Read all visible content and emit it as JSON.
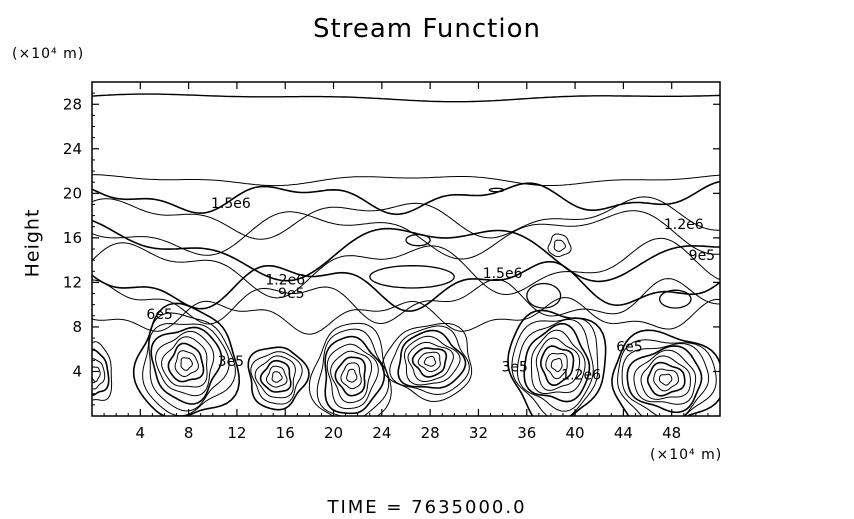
{
  "chart_data": {
    "type": "contour",
    "title": "Stream Function",
    "ylabel": "Height",
    "y_unit": "(×10⁴ m)",
    "x_unit": "(×10⁴ m)",
    "footer": "TIME  =  7635000.0",
    "xlim": [
      0,
      52
    ],
    "ylim": [
      0,
      30
    ],
    "x_ticks": [
      4,
      8,
      12,
      16,
      20,
      24,
      28,
      32,
      36,
      40,
      44,
      48
    ],
    "y_ticks": [
      4,
      8,
      12,
      16,
      20,
      24,
      28
    ],
    "grid": false,
    "contour_labels": [
      {
        "text": "1.5e6",
        "x": 11.5,
        "y": 18.7
      },
      {
        "text": "1.2e6",
        "x": 16.0,
        "y": 11.8
      },
      {
        "text": "9e5",
        "x": 16.5,
        "y": 10.6
      },
      {
        "text": "6e5",
        "x": 5.6,
        "y": 8.7
      },
      {
        "text": "1.5e6",
        "x": 34.0,
        "y": 12.4
      },
      {
        "text": "1.2e6",
        "x": 49.0,
        "y": 16.8
      },
      {
        "text": "9e5",
        "x": 50.5,
        "y": 14.0
      },
      {
        "text": "3e5",
        "x": 11.5,
        "y": 4.5
      },
      {
        "text": "3e5",
        "x": 35.0,
        "y": 4.0
      },
      {
        "text": "1.2e6",
        "x": 40.5,
        "y": 3.3
      },
      {
        "text": "6e5",
        "x": 44.5,
        "y": 5.8
      }
    ],
    "vortices": [
      {
        "x": 7.8,
        "y": 4.7,
        "value": "min"
      },
      {
        "x": 15.3,
        "y": 3.5,
        "value": "min"
      },
      {
        "x": 21.5,
        "y": 3.6,
        "value": "min"
      },
      {
        "x": 28.0,
        "y": 4.9,
        "value": "min"
      },
      {
        "x": 38.5,
        "y": 4.6,
        "value": "min"
      },
      {
        "x": 47.5,
        "y": 3.3,
        "value": "min"
      },
      {
        "x": 0.3,
        "y": 3.8,
        "value": "min"
      },
      {
        "x": 38.7,
        "y": 15.3,
        "value": "min"
      }
    ]
  }
}
